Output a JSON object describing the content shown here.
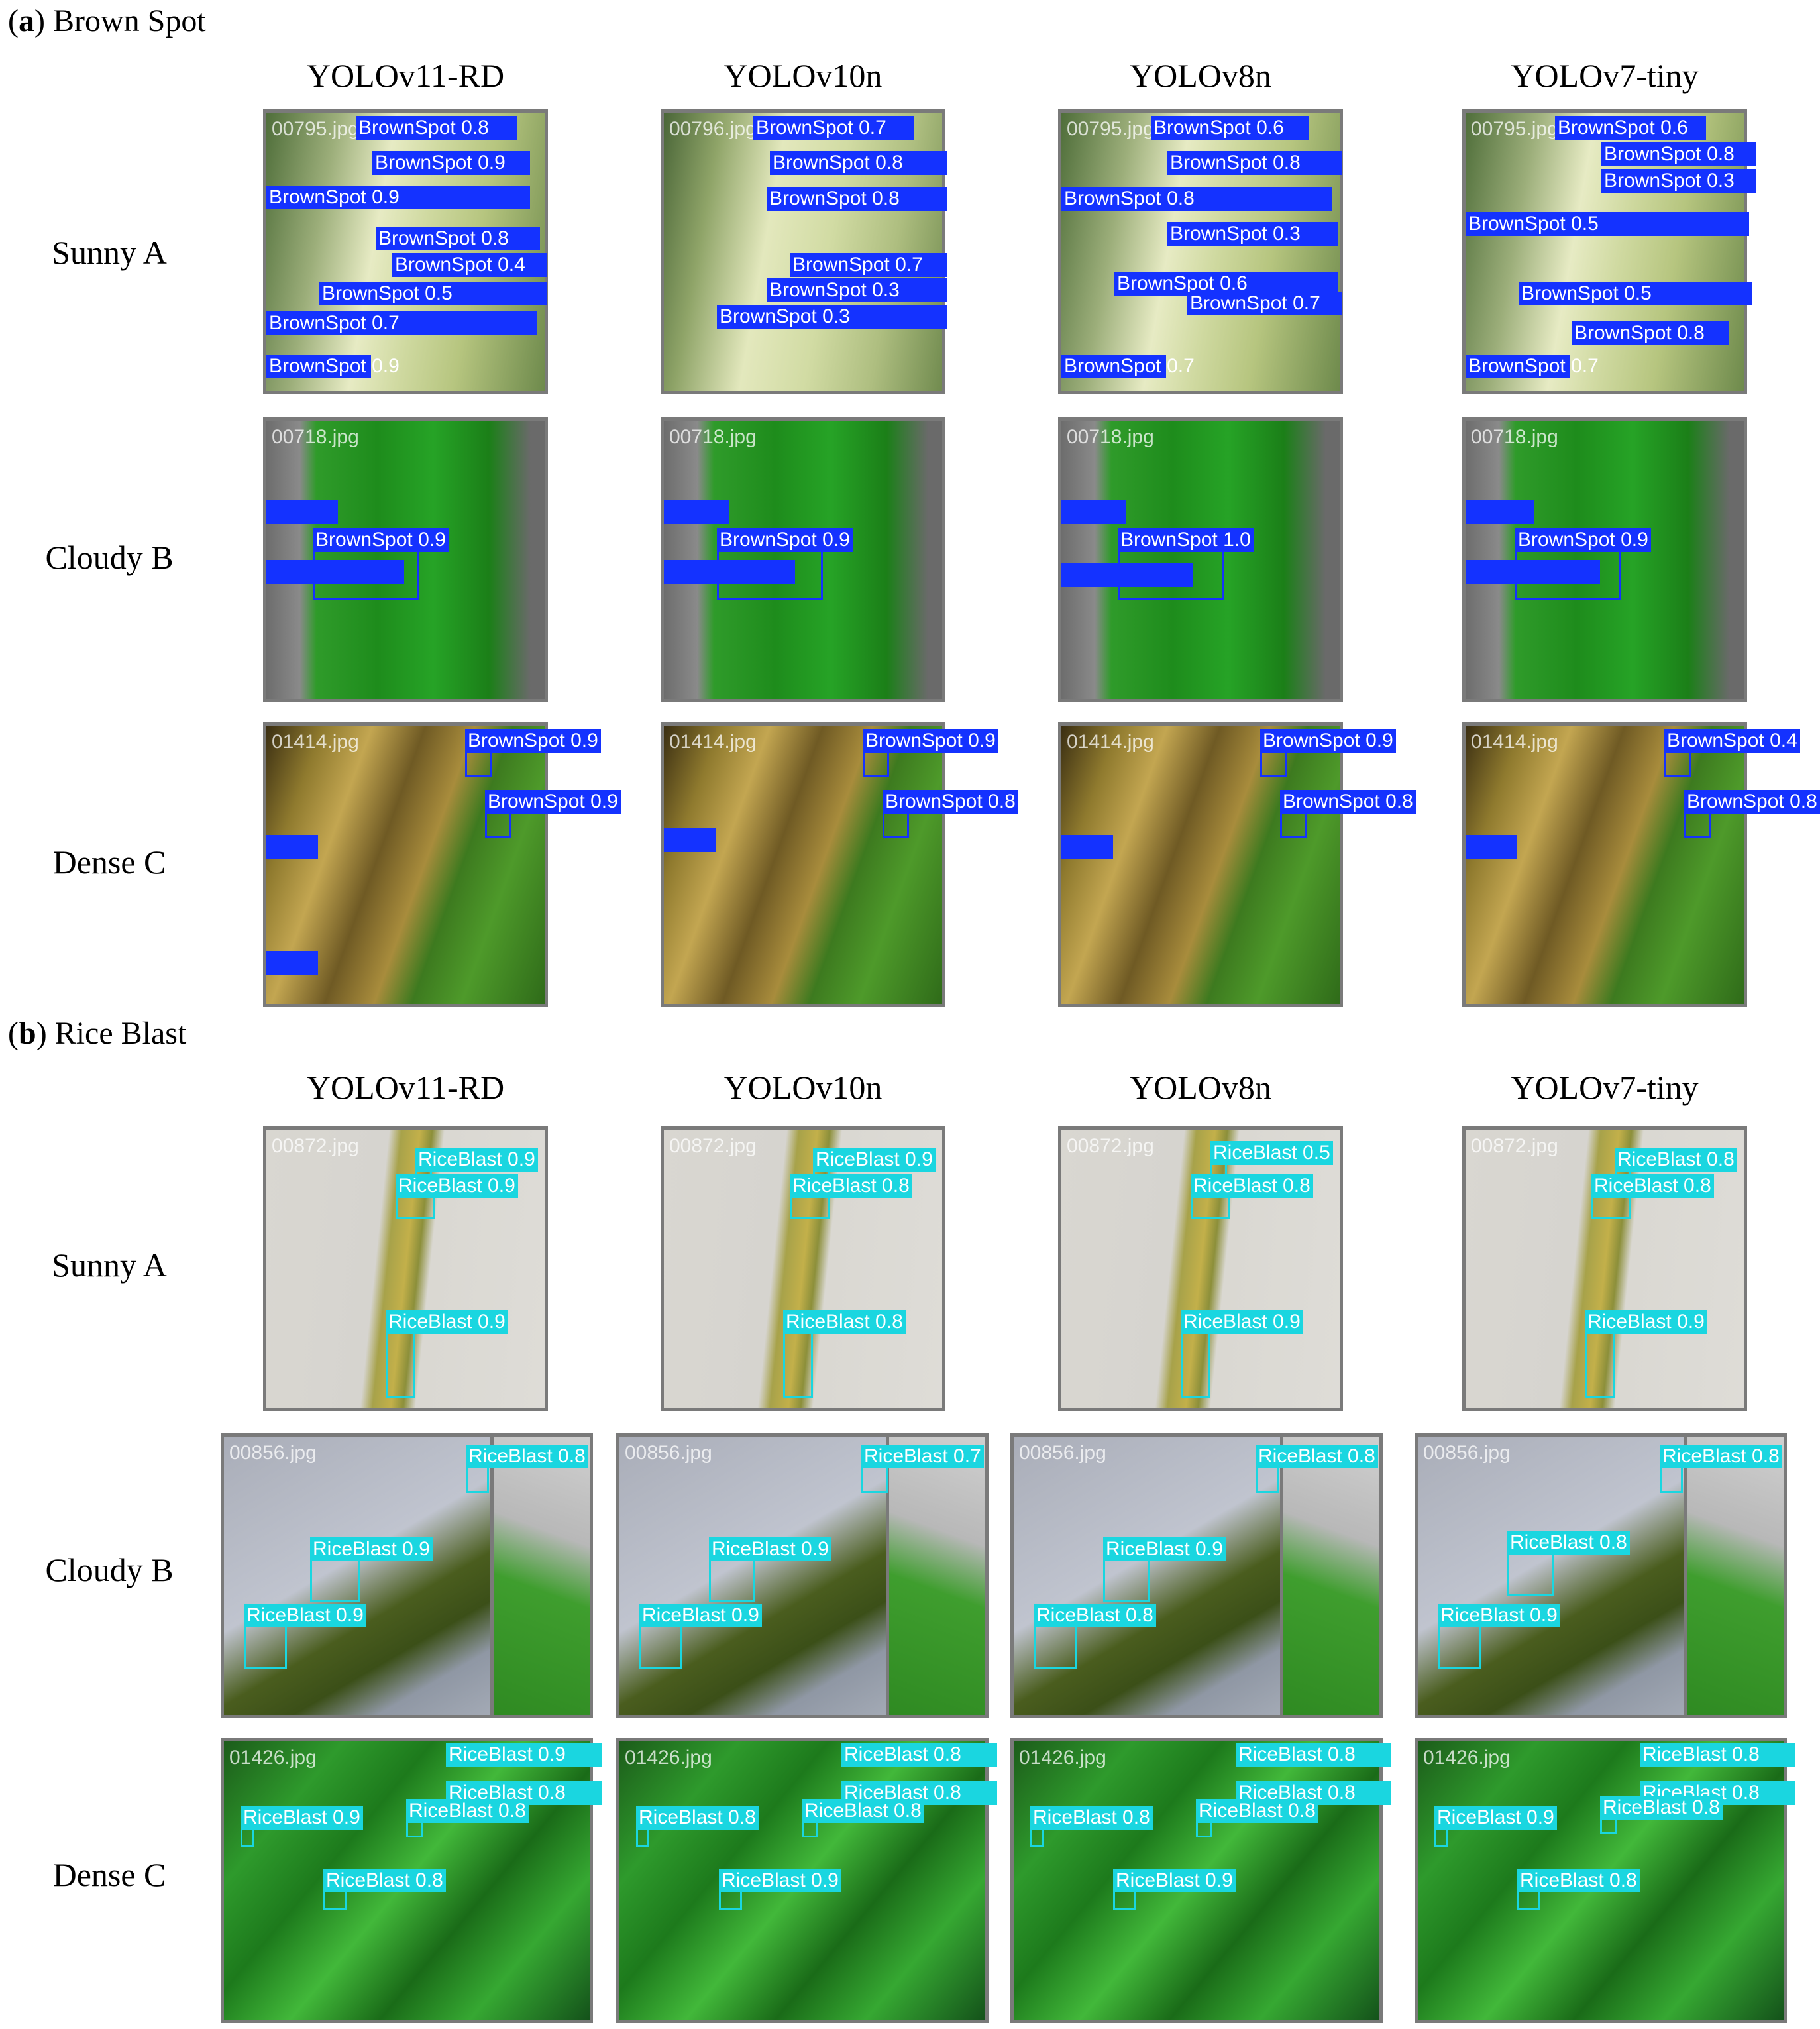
{
  "section_a": {
    "letter": "a",
    "title": "Brown Spot"
  },
  "section_b": {
    "letter": "b",
    "title": "Rice Blast"
  },
  "models": [
    "YOLOv11-RD",
    "YOLOv10n",
    "YOLOv8n",
    "YOLOv7-tiny"
  ],
  "conditions": [
    "Sunny A",
    "Cloudy B",
    "Dense C"
  ],
  "colors": {
    "brown_spot_box": "#1432ff",
    "rice_blast_box": "#1ad6e0"
  },
  "panels": {
    "a_sunny": [
      {
        "file": "00795.jpg",
        "strips": [
          "BrownSpot 0.8",
          "BrownSpot 0.9",
          "BrownSpot 0.9",
          "BrownSpot 0.8",
          "BrownSpot 0.4",
          "BrownSpot 0.5",
          "BrownSpot 0.7",
          "BrownSpot 0.9"
        ]
      },
      {
        "file": "00796.jpg",
        "strips": [
          "BrownSpot 0.7",
          "BrownSpot 0.8",
          "BrownSpot 0.8",
          "BrownSpot 0.7",
          "BrownSpot 0.3",
          "BrownSpot 0.3"
        ]
      },
      {
        "file": "00795.jpg",
        "strips": [
          "BrownSpot 0.6",
          "BrownSpot 0.8",
          "BrownSpot 0.8",
          "BrownSpot 0.3",
          "BrownSpot 0.6",
          "BrownSpot 0.7",
          "BrownSpot 0.7"
        ]
      },
      {
        "file": "00795.jpg",
        "strips": [
          "BrownSpot 0.6",
          "BrownSpot 0.8",
          "BrownSpot 0.3",
          "BrownSpot 0.5",
          "BrownSpot 0.5",
          "BrownSpot 0.8",
          "BrownSpot 0.7"
        ]
      }
    ],
    "a_cloudy": [
      {
        "file": "00718.jpg",
        "main": "BrownSpot 0.9"
      },
      {
        "file": "00718.jpg",
        "main": "BrownSpot 0.9"
      },
      {
        "file": "00718.jpg",
        "main": "BrownSpot 1.0"
      },
      {
        "file": "00718.jpg",
        "main": "BrownSpot 0.9"
      }
    ],
    "a_dense": [
      {
        "file": "01414.jpg",
        "top": "BrownSpot 0.9",
        "mid": "BrownSpot 0.9"
      },
      {
        "file": "01414.jpg",
        "top": "BrownSpot 0.9",
        "mid": "BrownSpot 0.8"
      },
      {
        "file": "01414.jpg",
        "top": "BrownSpot 0.9",
        "mid": "BrownSpot 0.8"
      },
      {
        "file": "01414.jpg",
        "top": "BrownSpot 0.4",
        "mid": "BrownSpot 0.8"
      }
    ],
    "b_sunny": [
      {
        "file": "00872.jpg",
        "top": "RiceBlast 0.9",
        "mid": "RiceBlast 0.9",
        "low": "RiceBlast 0.9"
      },
      {
        "file": "00872.jpg",
        "top": "RiceBlast 0.9",
        "mid": "RiceBlast 0.8",
        "low": "RiceBlast 0.8"
      },
      {
        "file": "00872.jpg",
        "top": "RiceBlast 0.5",
        "mid": "RiceBlast 0.8",
        "low": "RiceBlast 0.9"
      },
      {
        "file": "00872.jpg",
        "top": "RiceBlast 0.8",
        "mid": "RiceBlast 0.8",
        "low": "RiceBlast 0.9"
      }
    ],
    "b_cloudy": [
      {
        "file": "00856.jpg",
        "top": "RiceBlast 0.8",
        "mid": "RiceBlast 0.9",
        "low": "RiceBlast 0.9"
      },
      {
        "file": "00856.jpg",
        "top": "RiceBlast 0.7",
        "mid": "RiceBlast 0.9",
        "low": "RiceBlast 0.9"
      },
      {
        "file": "00856.jpg",
        "top": "RiceBlast 0.8",
        "mid": "RiceBlast 0.9",
        "low": "RiceBlast 0.8"
      },
      {
        "file": "00856.jpg",
        "top": "RiceBlast 0.8",
        "mid": "RiceBlast 0.8",
        "low": "RiceBlast 0.9"
      }
    ],
    "b_dense": [
      {
        "file": "01426.jpg",
        "a": "RiceBlast 0.9",
        "b": "RiceBlast 0.8",
        "c": "RiceBlast 0.8",
        "d": "RiceBlast 0.9",
        "e": "RiceBlast 0.8"
      },
      {
        "file": "01426.jpg",
        "a": "RiceBlast 0.8",
        "b": "RiceBlast 0.8",
        "c": "RiceBlast 0.8",
        "d": "RiceBlast 0.8",
        "e": "RiceBlast 0.9"
      },
      {
        "file": "01426.jpg",
        "a": "RiceBlast 0.8",
        "b": "RiceBlast 0.8",
        "c": "RiceBlast 0.8",
        "d": "RiceBlast 0.8",
        "e": "RiceBlast 0.9"
      },
      {
        "file": "01426.jpg",
        "a": "RiceBlast 0.8",
        "b": "RiceBlast 0.8",
        "c": "RiceBlast 0.8",
        "d": "RiceBlast 0.9",
        "e": "RiceBlast 0.8"
      }
    ]
  }
}
